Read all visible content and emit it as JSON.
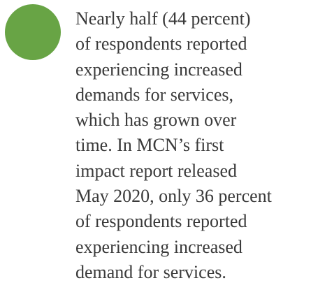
{
  "paragraph": {
    "lines": [
      "Nearly half (44 percent)",
      "of respondents reported",
      "experiencing increased",
      "demands for services,",
      "which has grown over",
      "time. In MCN’s first",
      "impact report released",
      "May 2020, only 36 percent",
      "of respondents reported",
      "experiencing increased",
      "demand for services."
    ]
  }
}
